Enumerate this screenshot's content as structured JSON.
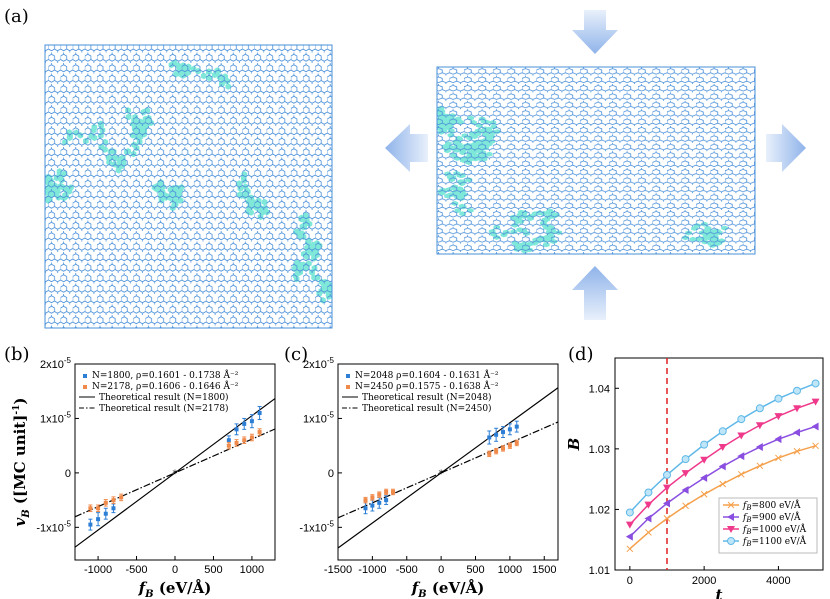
{
  "panels": {
    "a": "(a)",
    "b": "(b)",
    "c": "(c)",
    "d": "(d)"
  },
  "colors": {
    "lattice": "#4a90d9",
    "filled": "#7fe8d9",
    "blue": "#2d7fd6",
    "orange": "#f08a4b",
    "arrow": "#aac8f0"
  },
  "chart_data": [
    {
      "type": "scatter",
      "panel": "(b)",
      "xlabel": "f_B (eV/Å)",
      "ylabel": "v_B ([MC unit]^-1)",
      "xlim": [
        -1300,
        1300
      ],
      "ylim": [
        -1.6e-05,
        2e-05
      ],
      "xticks": [
        "-1000",
        "-500",
        "0",
        "500",
        "1000"
      ],
      "yticks": [
        "-1x10^-5",
        "0",
        "1x10^-5",
        "2x10^-5"
      ],
      "legend": [
        "N=1800, ρ=0.1601 - 0.1738 Å^-2",
        "N=2178, ρ=0.1606 - 0.1646 Å^-2",
        "Theoretical result (N=1800)",
        "Theoretical result (N=2178)"
      ],
      "series": [
        {
          "name": "N=1800",
          "color": "blue",
          "x": [
            -1100,
            -1000,
            -900,
            -800,
            700,
            800,
            900,
            1000,
            1100
          ],
          "y": [
            -9.5e-06,
            -8.5e-06,
            -7.5e-06,
            -6.5e-06,
            6e-06,
            8e-06,
            9e-06,
            9.5e-06,
            1.1e-05
          ],
          "err": [
            1e-06,
            1.2e-06,
            1e-06,
            8e-07,
            8e-07,
            1e-06,
            1e-06,
            1.2e-06,
            1.2e-06
          ]
        },
        {
          "name": "N=2178",
          "color": "orange",
          "x": [
            -1100,
            -1000,
            -900,
            -800,
            -700,
            700,
            800,
            900,
            1000,
            1100
          ],
          "y": [
            -6.5e-06,
            -6.5e-06,
            -5.5e-06,
            -5e-06,
            -4.5e-06,
            5e-06,
            5.5e-06,
            6e-06,
            6.5e-06,
            7.5e-06
          ],
          "err": [
            6e-07,
            6e-07,
            6e-07,
            6e-07,
            6e-07,
            6e-07,
            6e-07,
            6e-07,
            6e-07,
            6e-07
          ]
        },
        {
          "name": "Theoretical result (N=1800)",
          "line": "solid",
          "slope": 1.05e-08
        },
        {
          "name": "Theoretical result (N=2178)",
          "line": "dashdot",
          "slope": 6.2e-09
        }
      ]
    },
    {
      "type": "scatter",
      "panel": "(c)",
      "xlabel": "f_B (eV/Å)",
      "ylabel": "",
      "xlim": [
        -1500,
        1700
      ],
      "ylim": [
        -1.6e-05,
        2e-05
      ],
      "xticks": [
        "-1500",
        "-1000",
        "-500",
        "0",
        "500",
        "1000",
        "1500"
      ],
      "yticks": [
        "-1x10^-5",
        "0",
        "1x10^-5",
        "2x10^-5"
      ],
      "legend": [
        "N=2048 ρ=0.1604 - 0.1631 Å^-2",
        "N=2450 ρ=0.1575 - 0.1638 Å^-2",
        "Theoretical result (N=2048)",
        "Theoretical result (N=2450)"
      ],
      "series": [
        {
          "name": "N=2048",
          "color": "blue",
          "x": [
            -1100,
            -1000,
            -900,
            -800,
            700,
            800,
            900,
            1000,
            1100
          ],
          "y": [
            -6.5e-06,
            -6e-06,
            -5.5e-06,
            -5e-06,
            6.5e-06,
            7e-06,
            7.5e-06,
            8e-06,
            8.5e-06
          ],
          "err": [
            1e-06,
            1e-06,
            1e-06,
            8e-07,
            1.2e-06,
            1.2e-06,
            1e-06,
            1e-06,
            1e-06
          ]
        },
        {
          "name": "N=2450",
          "color": "orange",
          "x": [
            -1100,
            -1000,
            -900,
            -800,
            -700,
            700,
            800,
            900,
            1000,
            1100
          ],
          "y": [
            -5e-06,
            -4.5e-06,
            -4e-06,
            -3.5e-06,
            -3.5e-06,
            3.5e-06,
            4e-06,
            4.5e-06,
            5e-06,
            5.5e-06
          ],
          "err": [
            5e-07,
            5e-07,
            5e-07,
            5e-07,
            5e-07,
            5e-07,
            5e-07,
            5e-07,
            5e-07,
            5e-07
          ]
        },
        {
          "name": "Theoretical result (N=2048)",
          "line": "solid",
          "slope": 9.2e-09
        },
        {
          "name": "Theoretical result (N=2450)",
          "line": "dashdot",
          "slope": 5.5e-09
        }
      ]
    },
    {
      "type": "line",
      "panel": "(d)",
      "xlabel": "t",
      "ylabel": "B",
      "xlim": [
        -400,
        5200
      ],
      "ylim": [
        1.01,
        1.045
      ],
      "xticks": [
        "0",
        "2000",
        "4000"
      ],
      "yticks": [
        "1.01",
        "1.02",
        "1.03",
        "1.04"
      ],
      "vline_x": 1000,
      "legend": [
        "f_B=800 eV/Å",
        "f_B=900 eV/Å",
        "f_B=1000 eV/Å",
        "f_B=1100 eV/Å"
      ],
      "x": [
        0,
        500,
        1000,
        1500,
        2000,
        2500,
        3000,
        3500,
        4000,
        4500,
        5000
      ],
      "series": [
        {
          "name": "f_B=800 eV/Å",
          "color": "#f5a04b",
          "marker": "cross",
          "y": [
            1.0135,
            1.0162,
            1.0185,
            1.0206,
            1.0225,
            1.0242,
            1.0258,
            1.0272,
            1.0285,
            1.0296,
            1.0305
          ]
        },
        {
          "name": "f_B=900 eV/Å",
          "color": "#8a4fe0",
          "marker": "tri-left",
          "y": [
            1.0155,
            1.0185,
            1.021,
            1.0232,
            1.0252,
            1.0271,
            1.0288,
            1.0303,
            1.0316,
            1.0327,
            1.0337
          ]
        },
        {
          "name": "f_B=1000 eV/Å",
          "color": "#ef3a8c",
          "marker": "tri-down",
          "y": [
            1.0175,
            1.0208,
            1.0236,
            1.026,
            1.0282,
            1.0303,
            1.0322,
            1.0339,
            1.0354,
            1.0367,
            1.0378
          ]
        },
        {
          "name": "f_B=1100 eV/Å",
          "color": "#5fb8e8",
          "marker": "circle",
          "y": [
            1.0195,
            1.0228,
            1.0257,
            1.0283,
            1.0307,
            1.0329,
            1.0349,
            1.0367,
            1.0383,
            1.0396,
            1.0408
          ]
        }
      ]
    }
  ],
  "labels": {
    "yb_unit": "([MC unit]",
    "y_sup": "-1",
    "close": "]",
    "x_unit": "(eV/Å)",
    "exp": "-5",
    "yb_sym": "v",
    "x_sym": "f",
    "sub": "B",
    "leg_b1": "N=1800, ρ=0.1601 - 0.1738 Å⁻²",
    "leg_b2": "N=2178, ρ=0.1606 - 0.1646 Å⁻²",
    "leg_b3": "Theoretical result (N=1800)",
    "leg_b4": "Theoretical result (N=2178)",
    "leg_c1": "N=2048 ρ=0.1604 - 0.1631 Å⁻²",
    "leg_c2": "N=2450 ρ=0.1575 - 0.1638 Å⁻²",
    "leg_c3": "Theoretical result (N=2048)",
    "leg_c4": "Theoretical result (N=2450)",
    "leg_d1": "f",
    "leg_d1b": "=800 eV/Å",
    "leg_d2b": "=900 eV/Å",
    "leg_d3b": "=1000 eV/Å",
    "leg_d4b": "=1100 eV/Å"
  }
}
